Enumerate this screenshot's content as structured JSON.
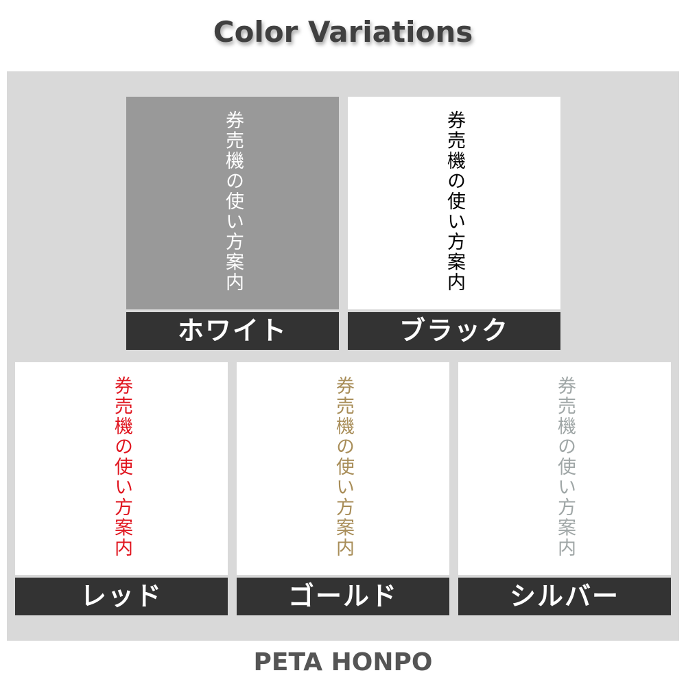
{
  "title": "Color Variations",
  "sign_text": "券売機の使い方案内",
  "variations": [
    {
      "label": "ホワイト",
      "background": "#999999",
      "text_color": "#ffffff"
    },
    {
      "label": "ブラック",
      "background": "#ffffff",
      "text_color": "#000000"
    },
    {
      "label": "レッド",
      "background": "#ffffff",
      "text_color": "#e0141e"
    },
    {
      "label": "ゴールド",
      "background": "#ffffff",
      "text_color": "#a88d58"
    },
    {
      "label": "シルバー",
      "background": "#ffffff",
      "text_color": "#9fa6a6"
    }
  ],
  "footer": "PETA HONPO"
}
